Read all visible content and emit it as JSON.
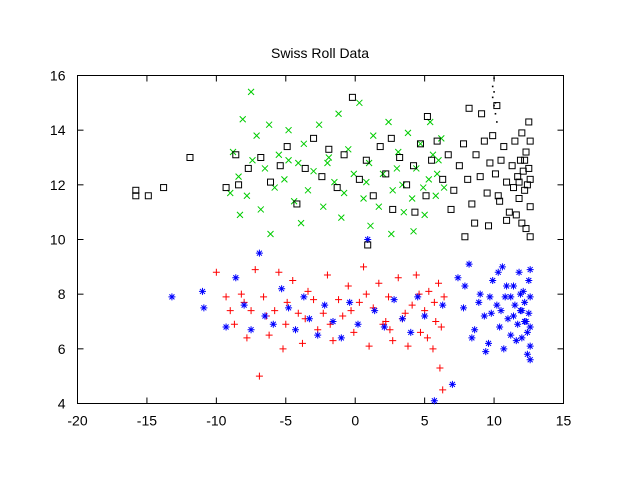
{
  "chart_data": {
    "type": "scatter",
    "title": "Swiss Roll Data",
    "xlabel": "",
    "ylabel": "",
    "xlim": [
      -20,
      15
    ],
    "ylim": [
      4,
      16
    ],
    "xticks": [
      "-20",
      "-15",
      "-10",
      "-5",
      "0",
      "5",
      "10",
      "15"
    ],
    "yticks": [
      "4",
      "6",
      "8",
      "10",
      "12",
      "14",
      "16"
    ],
    "grid": false,
    "legend": "none",
    "series": [
      {
        "marker": "plus",
        "color": "#ff0000",
        "points": [
          [
            -9.3,
            7.9
          ],
          [
            -9.0,
            7.4
          ],
          [
            -8.7,
            6.9
          ],
          [
            -8.2,
            8.0
          ],
          [
            -7.8,
            6.4
          ],
          [
            -7.5,
            7.4
          ],
          [
            -7.2,
            8.9
          ],
          [
            -6.9,
            5.0
          ],
          [
            -6.6,
            7.9
          ],
          [
            -6.2,
            6.5
          ],
          [
            -5.8,
            7.4
          ],
          [
            -5.5,
            8.8
          ],
          [
            -5.2,
            6.0
          ],
          [
            -4.9,
            7.7
          ],
          [
            -4.5,
            8.5
          ],
          [
            -4.1,
            7.3
          ],
          [
            -3.8,
            6.2
          ],
          [
            -3.4,
            8.1
          ],
          [
            -3.0,
            7.8
          ],
          [
            -2.7,
            6.7
          ],
          [
            -2.3,
            7.3
          ],
          [
            -2.0,
            8.7
          ],
          [
            -1.6,
            6.3
          ],
          [
            -1.2,
            7.8
          ],
          [
            -0.9,
            7.2
          ],
          [
            -0.5,
            8.3
          ],
          [
            -0.1,
            6.6
          ],
          [
            0.3,
            7.7
          ],
          [
            0.6,
            9.0
          ],
          [
            1.0,
            6.1
          ],
          [
            1.3,
            7.5
          ],
          [
            1.7,
            8.4
          ],
          [
            2.0,
            6.9
          ],
          [
            2.4,
            7.9
          ],
          [
            2.7,
            6.3
          ],
          [
            3.1,
            8.6
          ],
          [
            3.4,
            7.1
          ],
          [
            3.8,
            6.1
          ],
          [
            4.1,
            7.6
          ],
          [
            4.4,
            8.7
          ],
          [
            4.7,
            6.6
          ],
          [
            5.0,
            7.4
          ],
          [
            5.3,
            8.1
          ],
          [
            5.6,
            6.0
          ],
          [
            5.8,
            7.0
          ],
          [
            6.0,
            8.4
          ],
          [
            6.2,
            6.8
          ],
          [
            6.4,
            7.9
          ],
          [
            6.1,
            5.3
          ],
          [
            5.7,
            7.7
          ],
          [
            5.2,
            6.4
          ],
          [
            4.6,
            8.0
          ],
          [
            3.6,
            7.3
          ],
          [
            2.2,
            7.0
          ],
          [
            0.8,
            8.0
          ],
          [
            -0.3,
            7.4
          ],
          [
            -1.8,
            6.9
          ],
          [
            -3.6,
            7.1
          ],
          [
            -5.0,
            6.9
          ],
          [
            -6.4,
            7.2
          ],
          [
            -8.0,
            7.7
          ],
          [
            6.3,
            4.5
          ],
          [
            -10.0,
            8.8
          ],
          [
            2.5,
            6.7
          ]
        ]
      },
      {
        "marker": "star",
        "color": "#0000ff",
        "points": [
          [
            -13.2,
            7.9
          ],
          [
            -11.0,
            8.1
          ],
          [
            -10.9,
            7.5
          ],
          [
            -9.3,
            6.8
          ],
          [
            -8.6,
            8.6
          ],
          [
            -8.0,
            7.6
          ],
          [
            -7.5,
            6.7
          ],
          [
            -6.9,
            9.5
          ],
          [
            -6.5,
            7.2
          ],
          [
            -5.9,
            6.9
          ],
          [
            -5.3,
            8.2
          ],
          [
            -4.8,
            7.5
          ],
          [
            -4.3,
            6.7
          ],
          [
            -3.7,
            7.9
          ],
          [
            -3.3,
            7.1
          ],
          [
            -2.7,
            6.5
          ],
          [
            -2.2,
            7.6
          ],
          [
            -1.6,
            7.0
          ],
          [
            -1.0,
            6.4
          ],
          [
            -0.4,
            7.7
          ],
          [
            0.2,
            6.9
          ],
          [
            0.9,
            10.0
          ],
          [
            1.4,
            7.4
          ],
          [
            2.1,
            6.8
          ],
          [
            2.8,
            7.8
          ],
          [
            3.4,
            7.1
          ],
          [
            4.0,
            6.6
          ],
          [
            4.5,
            7.9
          ],
          [
            5.0,
            7.2
          ],
          [
            5.7,
            4.1
          ],
          [
            6.3,
            7.6
          ],
          [
            7.0,
            4.7
          ],
          [
            7.4,
            8.6
          ],
          [
            7.8,
            7.5
          ],
          [
            8.2,
            9.1
          ],
          [
            8.6,
            6.7
          ],
          [
            9.0,
            8.0
          ],
          [
            9.3,
            7.2
          ],
          [
            9.6,
            6.2
          ],
          [
            9.9,
            8.5
          ],
          [
            10.2,
            7.6
          ],
          [
            10.4,
            6.8
          ],
          [
            10.6,
            9.0
          ],
          [
            10.8,
            7.9
          ],
          [
            11.0,
            7.1
          ],
          [
            11.2,
            6.5
          ],
          [
            11.4,
            8.3
          ],
          [
            11.5,
            7.6
          ],
          [
            11.7,
            6.9
          ],
          [
            11.8,
            8.8
          ],
          [
            11.9,
            7.4
          ],
          [
            12.0,
            6.4
          ],
          [
            12.1,
            8.1
          ],
          [
            12.2,
            7.7
          ],
          [
            12.3,
            7.0
          ],
          [
            12.4,
            6.6
          ],
          [
            12.5,
            8.5
          ],
          [
            12.5,
            7.3
          ],
          [
            12.6,
            6.1
          ],
          [
            12.6,
            7.9
          ],
          [
            12.4,
            5.8
          ],
          [
            12.2,
            7.0
          ],
          [
            11.9,
            8.0
          ],
          [
            11.6,
            6.3
          ],
          [
            11.2,
            7.9
          ],
          [
            10.7,
            6.0
          ],
          [
            10.3,
            8.8
          ],
          [
            9.8,
            7.3
          ],
          [
            9.4,
            5.9
          ],
          [
            8.9,
            7.7
          ],
          [
            8.4,
            6.4
          ],
          [
            7.9,
            8.3
          ],
          [
            12.6,
            5.6
          ],
          [
            12.6,
            8.9
          ],
          [
            12.0,
            7.4
          ],
          [
            11.4,
            7.2
          ],
          [
            10.9,
            8.3
          ],
          [
            10.5,
            7.4
          ],
          [
            9.7,
            7.9
          ],
          [
            12.6,
            6.8
          ]
        ]
      },
      {
        "marker": "cross",
        "color": "#00cc00",
        "points": [
          [
            -9.0,
            11.7
          ],
          [
            -8.8,
            13.2
          ],
          [
            -8.4,
            12.3
          ],
          [
            -8.1,
            14.4
          ],
          [
            -7.8,
            11.6
          ],
          [
            -7.4,
            12.9
          ],
          [
            -7.1,
            13.8
          ],
          [
            -6.8,
            11.1
          ],
          [
            -6.5,
            12.6
          ],
          [
            -6.2,
            14.2
          ],
          [
            -5.8,
            11.9
          ],
          [
            -5.5,
            13.1
          ],
          [
            -5.1,
            12.2
          ],
          [
            -4.8,
            14.0
          ],
          [
            -4.4,
            11.4
          ],
          [
            -4.1,
            12.8
          ],
          [
            -3.7,
            13.5
          ],
          [
            -3.4,
            11.8
          ],
          [
            -3.0,
            12.5
          ],
          [
            -2.6,
            14.2
          ],
          [
            -2.3,
            11.2
          ],
          [
            -1.9,
            13.0
          ],
          [
            -1.5,
            12.1
          ],
          [
            -1.2,
            14.6
          ],
          [
            -0.8,
            11.7
          ],
          [
            -0.5,
            13.3
          ],
          [
            -0.1,
            12.4
          ],
          [
            0.3,
            15.0
          ],
          [
            0.6,
            11.5
          ],
          [
            1.0,
            12.8
          ],
          [
            1.3,
            13.8
          ],
          [
            1.7,
            11.2
          ],
          [
            2.0,
            12.4
          ],
          [
            2.4,
            14.3
          ],
          [
            2.7,
            11.8
          ],
          [
            3.1,
            13.2
          ],
          [
            3.4,
            12.0
          ],
          [
            3.8,
            13.9
          ],
          [
            4.1,
            11.5
          ],
          [
            4.4,
            12.6
          ],
          [
            4.7,
            13.5
          ],
          [
            5.0,
            10.9
          ],
          [
            5.3,
            12.2
          ],
          [
            5.6,
            13.1
          ],
          [
            5.8,
            11.6
          ],
          [
            6.0,
            12.9
          ],
          [
            6.2,
            13.7
          ],
          [
            6.4,
            11.9
          ],
          [
            5.4,
            14.3
          ],
          [
            4.2,
            10.3
          ],
          [
            3.5,
            11.0
          ],
          [
            2.6,
            10.2
          ],
          [
            1.1,
            10.5
          ],
          [
            -1.0,
            10.8
          ],
          [
            -3.9,
            10.6
          ],
          [
            -6.1,
            10.2
          ],
          [
            -7.5,
            15.4
          ],
          [
            -8.3,
            10.9
          ],
          [
            -2.0,
            12.8
          ],
          [
            0.8,
            12.1
          ],
          [
            3.0,
            12.6
          ],
          [
            5.9,
            12.4
          ],
          [
            4.9,
            11.9
          ],
          [
            -4.8,
            12.9
          ]
        ]
      },
      {
        "marker": "square",
        "color": "#000000",
        "points": [
          [
            -15.8,
            11.8
          ],
          [
            -15.8,
            11.6
          ],
          [
            -14.9,
            11.6
          ],
          [
            -13.8,
            11.9
          ],
          [
            -11.9,
            13.0
          ],
          [
            -9.3,
            11.9
          ],
          [
            -8.6,
            13.1
          ],
          [
            -8.4,
            12.0
          ],
          [
            -7.7,
            12.6
          ],
          [
            -6.8,
            13.0
          ],
          [
            -6.1,
            12.1
          ],
          [
            -5.4,
            12.7
          ],
          [
            -4.9,
            13.4
          ],
          [
            -4.2,
            11.3
          ],
          [
            -3.6,
            12.6
          ],
          [
            -3.0,
            13.7
          ],
          [
            -2.4,
            12.3
          ],
          [
            -1.9,
            13.3
          ],
          [
            -1.3,
            11.9
          ],
          [
            -0.8,
            13.1
          ],
          [
            -0.2,
            15.2
          ],
          [
            0.3,
            12.2
          ],
          [
            0.8,
            12.9
          ],
          [
            1.3,
            11.6
          ],
          [
            1.8,
            13.4
          ],
          [
            2.2,
            12.4
          ],
          [
            2.7,
            11.1
          ],
          [
            3.2,
            13.0
          ],
          [
            3.7,
            12.0
          ],
          [
            4.2,
            12.7
          ],
          [
            4.7,
            13.5
          ],
          [
            5.1,
            11.6
          ],
          [
            5.5,
            12.9
          ],
          [
            5.9,
            13.6
          ],
          [
            6.3,
            12.2
          ],
          [
            6.7,
            13.1
          ],
          [
            7.1,
            11.8
          ],
          [
            7.5,
            12.7
          ],
          [
            7.8,
            13.5
          ],
          [
            8.1,
            12.2
          ],
          [
            8.4,
            11.3
          ],
          [
            8.7,
            13.1
          ],
          [
            9.0,
            12.3
          ],
          [
            9.3,
            13.6
          ],
          [
            9.5,
            11.7
          ],
          [
            9.7,
            12.8
          ],
          [
            9.9,
            13.8
          ],
          [
            10.1,
            12.4
          ],
          [
            10.3,
            11.6
          ],
          [
            10.5,
            12.9
          ],
          [
            10.7,
            13.4
          ],
          [
            10.9,
            12.1
          ],
          [
            11.1,
            11.0
          ],
          [
            11.3,
            12.7
          ],
          [
            11.5,
            13.6
          ],
          [
            11.7,
            12.3
          ],
          [
            11.8,
            11.5
          ],
          [
            11.9,
            12.9
          ],
          [
            12.0,
            13.9
          ],
          [
            12.1,
            12.5
          ],
          [
            12.2,
            11.8
          ],
          [
            12.3,
            13.2
          ],
          [
            12.4,
            12.0
          ],
          [
            12.5,
            14.3
          ],
          [
            12.5,
            12.6
          ],
          [
            12.6,
            11.2
          ],
          [
            12.6,
            13.6
          ],
          [
            12.6,
            10.1
          ],
          [
            12.3,
            10.4
          ],
          [
            11.6,
            10.9
          ],
          [
            10.9,
            10.7
          ],
          [
            10.4,
            11.4
          ],
          [
            9.6,
            10.5
          ],
          [
            8.6,
            10.6
          ],
          [
            7.9,
            10.1
          ],
          [
            6.9,
            11.1
          ],
          [
            5.2,
            14.5
          ],
          [
            4.3,
            11.0
          ],
          [
            2.6,
            13.7
          ],
          [
            0.9,
            9.8
          ],
          [
            12.6,
            12.2
          ],
          [
            12.2,
            12.9
          ],
          [
            11.8,
            12.1
          ],
          [
            11.4,
            11.9
          ],
          [
            12.0,
            10.6
          ],
          [
            10.2,
            14.9
          ],
          [
            9.1,
            14.6
          ],
          [
            8.2,
            14.8
          ]
        ]
      },
      {
        "marker": "dot",
        "color": "#000000",
        "points": [
          [
            10.0,
            15.9
          ],
          [
            9.9,
            15.6
          ],
          [
            9.9,
            15.2
          ],
          [
            10.0,
            14.9
          ],
          [
            10.1,
            14.6
          ],
          [
            10.2,
            14.3
          ],
          [
            10.0,
            15.4
          ],
          [
            10.1,
            15.0
          ]
        ]
      }
    ]
  }
}
